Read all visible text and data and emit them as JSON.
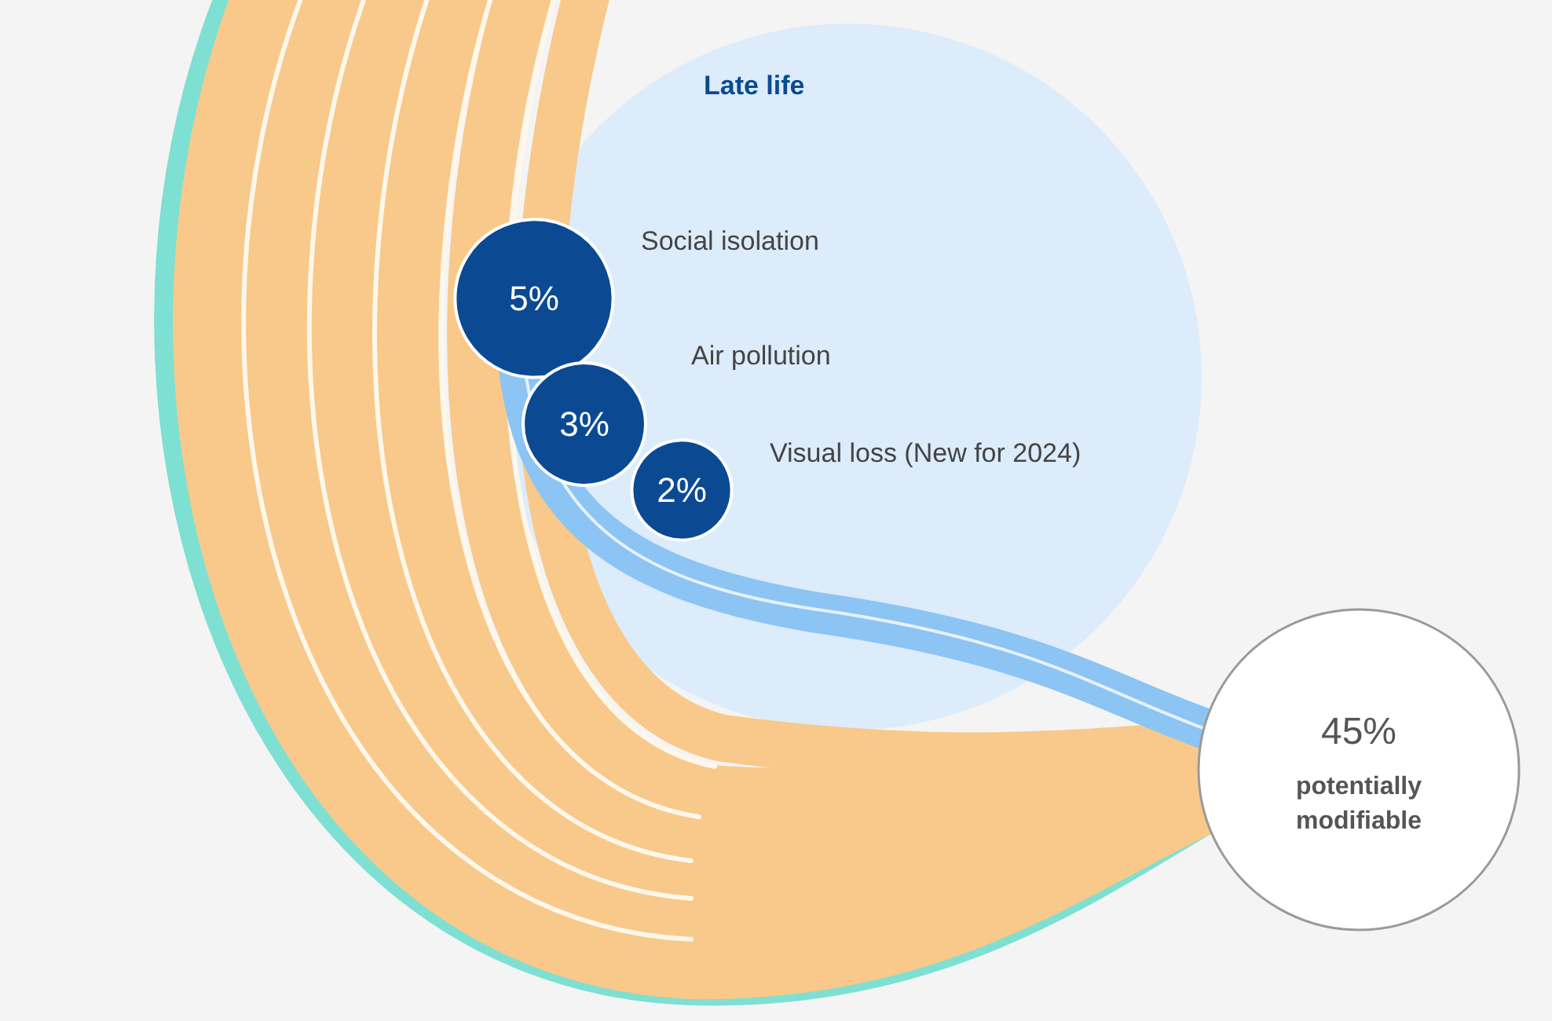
{
  "chart_data": {
    "type": "other",
    "title": "Late life",
    "categories": [
      "Social isolation",
      "Air pollution",
      "Visual loss (New for 2024)"
    ],
    "values": [
      5,
      3,
      2
    ],
    "value_labels": [
      "5%",
      "3%",
      "2%"
    ],
    "color": "#0b4a93",
    "annotations": [
      "45%",
      "potentially modifiable"
    ]
  }
}
